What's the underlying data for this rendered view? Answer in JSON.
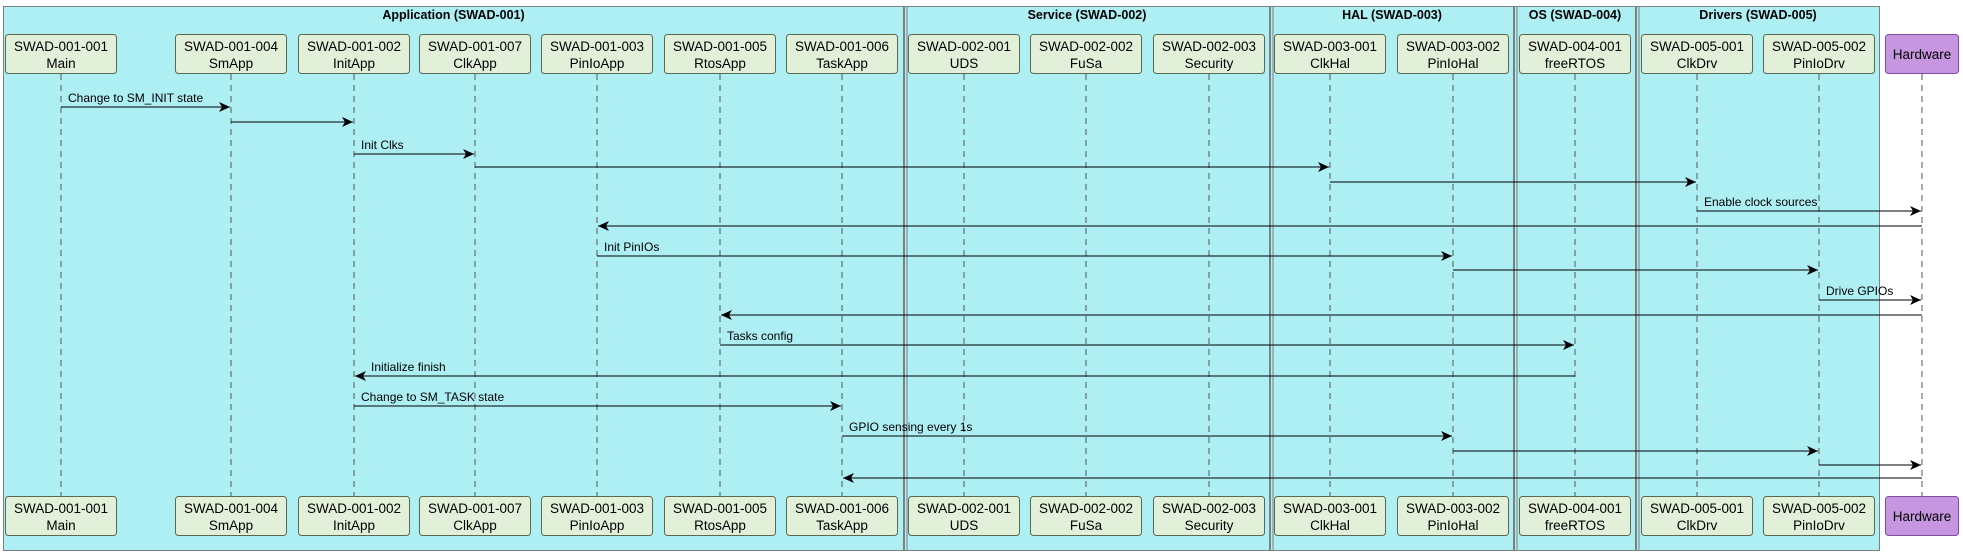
{
  "colors": {
    "box_fill": "#aeeff4",
    "box_stroke": "#7f7f7f",
    "participant_fill": "#e2f0d9",
    "participant_stroke": "#5a6a4f",
    "hardware_fill": "#c697e0",
    "hardware_stroke": "#7a4fa0",
    "line": "#000000"
  },
  "groups": [
    {
      "id": "app",
      "title": "Application (SWAD-001)",
      "members": [
        "main",
        "smapp",
        "initapp",
        "clkapp",
        "pinioapp",
        "rtosapp",
        "taskapp"
      ]
    },
    {
      "id": "svc",
      "title": "Service (SWAD-002)",
      "members": [
        "uds",
        "fusa",
        "security"
      ]
    },
    {
      "id": "hal",
      "title": "HAL (SWAD-003)",
      "members": [
        "clkhal",
        "piniohal"
      ]
    },
    {
      "id": "os",
      "title": "OS (SWAD-004)",
      "members": [
        "freertos"
      ]
    },
    {
      "id": "drv",
      "title": "Drivers (SWAD-005)",
      "members": [
        "clkdrv",
        "piniodrv"
      ]
    }
  ],
  "participants": [
    {
      "id": "main",
      "code": "SWAD-001-001",
      "name": "Main"
    },
    {
      "id": "smapp",
      "code": "SWAD-001-004",
      "name": "SmApp"
    },
    {
      "id": "initapp",
      "code": "SWAD-001-002",
      "name": "InitApp"
    },
    {
      "id": "clkapp",
      "code": "SWAD-001-007",
      "name": "ClkApp"
    },
    {
      "id": "pinioapp",
      "code": "SWAD-001-003",
      "name": "PinIoApp"
    },
    {
      "id": "rtosapp",
      "code": "SWAD-001-005",
      "name": "RtosApp"
    },
    {
      "id": "taskapp",
      "code": "SWAD-001-006",
      "name": "TaskApp"
    },
    {
      "id": "uds",
      "code": "SWAD-002-001",
      "name": "UDS"
    },
    {
      "id": "fusa",
      "code": "SWAD-002-002",
      "name": "FuSa"
    },
    {
      "id": "security",
      "code": "SWAD-002-003",
      "name": "Security"
    },
    {
      "id": "clkhal",
      "code": "SWAD-003-001",
      "name": "ClkHal"
    },
    {
      "id": "piniohal",
      "code": "SWAD-003-002",
      "name": "PinIoHal"
    },
    {
      "id": "freertos",
      "code": "SWAD-004-001",
      "name": "freeRTOS"
    },
    {
      "id": "clkdrv",
      "code": "SWAD-005-001",
      "name": "ClkDrv"
    },
    {
      "id": "piniodrv",
      "code": "SWAD-005-002",
      "name": "PinIoDrv"
    },
    {
      "id": "hardware",
      "code": "",
      "name": "Hardware"
    }
  ],
  "messages": [
    {
      "from": "main",
      "to": "smapp",
      "label": "Change to SM_INIT state"
    },
    {
      "from": "smapp",
      "to": "initapp",
      "label": ""
    },
    {
      "from": "initapp",
      "to": "clkapp",
      "label": "Init Clks"
    },
    {
      "from": "clkapp",
      "to": "clkhal",
      "label": ""
    },
    {
      "from": "clkhal",
      "to": "clkdrv",
      "label": ""
    },
    {
      "from": "clkdrv",
      "to": "hardware",
      "label": "Enable clock sources"
    },
    {
      "from": "hardware",
      "to": "pinioapp",
      "label": ""
    },
    {
      "from": "pinioapp",
      "to": "piniohal",
      "label": "Init PinIOs"
    },
    {
      "from": "piniohal",
      "to": "piniodrv",
      "label": ""
    },
    {
      "from": "piniodrv",
      "to": "hardware",
      "label": "Drive GPIOs"
    },
    {
      "from": "hardware",
      "to": "rtosapp",
      "label": ""
    },
    {
      "from": "rtosapp",
      "to": "freertos",
      "label": "Tasks config"
    },
    {
      "from": "freertos",
      "to": "initapp",
      "label": "Initialize finish"
    },
    {
      "from": "initapp",
      "to": "taskapp",
      "label": "Change to SM_TASK state"
    },
    {
      "from": "taskapp",
      "to": "piniohal",
      "label": "GPIO sensing every 1s"
    },
    {
      "from": "piniohal",
      "to": "piniodrv",
      "label": ""
    },
    {
      "from": "piniodrv",
      "to": "hardware",
      "label": ""
    },
    {
      "from": "hardware",
      "to": "taskapp",
      "label": ""
    }
  ]
}
